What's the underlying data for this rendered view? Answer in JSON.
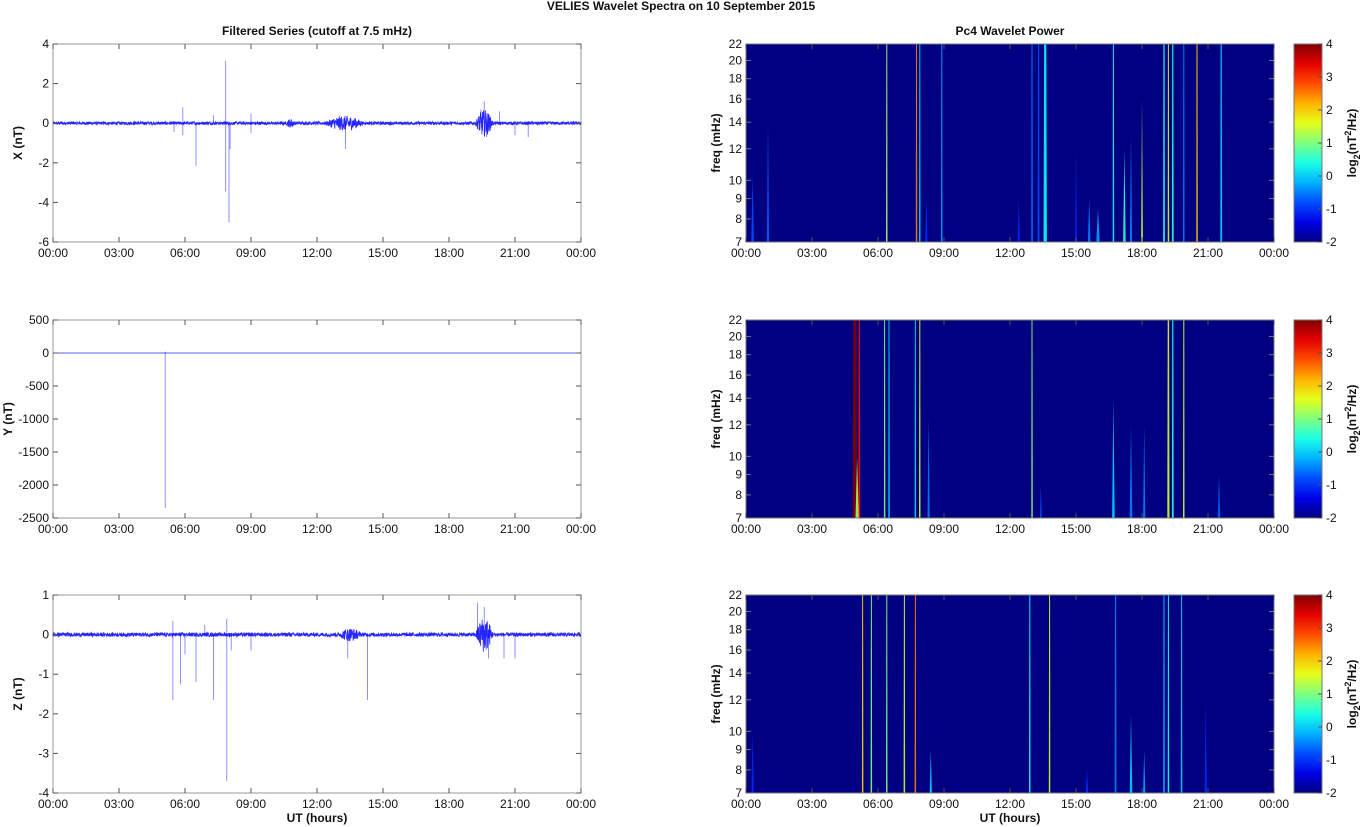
{
  "figure": {
    "title": "VELIES Wavelet Spectra on 10 September 2015",
    "left_title": "Filtered Series (cutoff at 7.5 mHz)",
    "right_title": "Pc4 Wavelet Power",
    "xlabel": "UT (hours)"
  },
  "chart_data": [
    {
      "type": "line",
      "component": "X",
      "ylabel": "X (nT)",
      "ylim": [
        -6,
        4
      ],
      "yticks": [
        4,
        2,
        0,
        -2,
        -4,
        -6
      ],
      "xlim_hours": [
        0,
        24
      ],
      "xticks": [
        "00:00",
        "03:00",
        "06:00",
        "09:00",
        "12:00",
        "15:00",
        "18:00",
        "21:00",
        "00:00"
      ],
      "color": "#0000ff",
      "noise_amplitude": 0.08,
      "bursts": [
        [
          12.4,
          14.1,
          0.3
        ],
        [
          19.2,
          20.0,
          0.6
        ],
        [
          10.6,
          11.0,
          0.15
        ]
      ],
      "spikes": [
        [
          5.9,
          0.8
        ],
        [
          5.9,
          -0.6
        ],
        [
          6.5,
          -2.15
        ],
        [
          7.85,
          3.15
        ],
        [
          7.85,
          -3.45
        ],
        [
          8.0,
          -5.0
        ],
        [
          8.05,
          -1.3
        ],
        [
          9.0,
          0.5
        ],
        [
          9.0,
          -0.5
        ],
        [
          13.3,
          -1.3
        ],
        [
          19.6,
          1.1
        ],
        [
          19.45,
          0.7
        ],
        [
          19.7,
          -0.7
        ],
        [
          20.3,
          0.6
        ],
        [
          21.0,
          -0.6
        ],
        [
          21.6,
          -0.7
        ],
        [
          5.5,
          -0.45
        ],
        [
          7.3,
          0.4
        ]
      ]
    },
    {
      "type": "line",
      "component": "Y",
      "ylabel": "Y (nT)",
      "ylim": [
        -2500,
        500
      ],
      "yticks": [
        500,
        0,
        -500,
        -1000,
        -1500,
        -2000,
        -2500
      ],
      "xlim_hours": [
        0,
        24
      ],
      "xticks": [
        "00:00",
        "03:00",
        "06:00",
        "09:00",
        "12:00",
        "15:00",
        "18:00",
        "21:00",
        "00:00"
      ],
      "color": "#0000ff",
      "noise_amplitude": 0,
      "bursts": [],
      "spikes": [
        [
          5.1,
          -2350
        ],
        [
          5.1,
          20
        ]
      ]
    },
    {
      "type": "line",
      "component": "Z",
      "ylabel": "Z (nT)",
      "ylim": [
        -4,
        1
      ],
      "yticks": [
        1,
        0,
        -1,
        -2,
        -3,
        -4
      ],
      "xlim_hours": [
        0,
        24
      ],
      "xticks": [
        "00:00",
        "03:00",
        "06:00",
        "09:00",
        "12:00",
        "15:00",
        "18:00",
        "21:00",
        "00:00"
      ],
      "color": "#0000ff",
      "noise_amplitude": 0.05,
      "bursts": [
        [
          19.2,
          20.0,
          0.4
        ],
        [
          13.0,
          14.0,
          0.12
        ]
      ],
      "spikes": [
        [
          5.45,
          -1.65
        ],
        [
          5.45,
          0.35
        ],
        [
          5.8,
          -1.25
        ],
        [
          6.5,
          -1.2
        ],
        [
          7.3,
          -1.65
        ],
        [
          7.9,
          -3.7
        ],
        [
          7.9,
          0.4
        ],
        [
          8.1,
          -0.4
        ],
        [
          9.0,
          -0.4
        ],
        [
          13.4,
          -0.6
        ],
        [
          14.3,
          -1.65
        ],
        [
          19.3,
          0.8
        ],
        [
          19.6,
          0.7
        ],
        [
          19.8,
          -0.6
        ],
        [
          20.5,
          -0.6
        ],
        [
          21.0,
          -0.6
        ],
        [
          6.0,
          -0.5
        ],
        [
          6.9,
          0.25
        ]
      ]
    },
    {
      "type": "heatmap",
      "component": "X",
      "ylabel": "freq (mHz)",
      "ylim": [
        7,
        22
      ],
      "yticks": [
        7,
        8,
        9,
        10,
        12,
        14,
        16,
        18,
        20,
        22
      ],
      "yscale": "log",
      "xlim_hours": [
        0,
        24
      ],
      "xticks": [
        "00:00",
        "03:00",
        "06:00",
        "09:00",
        "12:00",
        "15:00",
        "18:00",
        "21:00",
        "00:00"
      ],
      "colorbar": {
        "range": [
          -2,
          4
        ],
        "ticks": [
          4,
          3,
          2,
          1,
          0,
          -1,
          -2
        ],
        "label_base": "log",
        "label_sub": "2",
        "label_mid": "(nT",
        "label_sup": "2",
        "label_end": "/Hz)"
      },
      "background_power": -2,
      "streaks": [
        [
          0.3,
          10.3,
          -0.8,
          0.12
        ],
        [
          1.0,
          14,
          -0.7,
          0.1
        ],
        [
          6.4,
          22,
          1.2,
          0.05
        ],
        [
          7.75,
          22,
          2.5,
          0.05
        ],
        [
          7.9,
          22,
          0,
          0.05
        ],
        [
          8.2,
          9,
          -1,
          0.1
        ],
        [
          8.9,
          22,
          -0.3,
          0.06
        ],
        [
          12.4,
          9,
          -1,
          0.1
        ],
        [
          13.0,
          22,
          -0.5,
          0.06
        ],
        [
          13.3,
          22,
          -0.8,
          0.08
        ],
        [
          13.6,
          22,
          0.3,
          0.15
        ],
        [
          15.0,
          12,
          -1,
          0.08
        ],
        [
          15.6,
          9,
          -0.5,
          0.12
        ],
        [
          16.0,
          8.5,
          -0.3,
          0.15
        ],
        [
          16.7,
          22,
          0.3,
          0.06
        ],
        [
          17.2,
          12,
          0.5,
          0.12
        ],
        [
          17.5,
          13,
          -0.5,
          0.1
        ],
        [
          18.0,
          16,
          1.5,
          0.08
        ],
        [
          19.0,
          22,
          0.5,
          0.08
        ],
        [
          19.2,
          22,
          1.5,
          0.06
        ],
        [
          19.4,
          22,
          0.5,
          0.08
        ],
        [
          19.9,
          22,
          -0.5,
          0.06
        ],
        [
          20.5,
          22,
          2,
          0.04
        ],
        [
          21.6,
          22,
          0,
          0.08
        ]
      ]
    },
    {
      "type": "heatmap",
      "component": "Y",
      "ylabel": "freq (mHz)",
      "ylim": [
        7,
        22
      ],
      "yticks": [
        7,
        8,
        9,
        10,
        12,
        14,
        16,
        18,
        20,
        22
      ],
      "yscale": "log",
      "xlim_hours": [
        0,
        24
      ],
      "xticks": [
        "00:00",
        "03:00",
        "06:00",
        "09:00",
        "12:00",
        "15:00",
        "18:00",
        "21:00",
        "00:00"
      ],
      "colorbar": {
        "range": [
          -2,
          4
        ],
        "ticks": [
          4,
          3,
          2,
          1,
          0,
          -1,
          -2
        ],
        "label_base": "log",
        "label_sub": "2",
        "label_mid": "(nT",
        "label_sup": "2",
        "label_end": "/Hz)"
      },
      "background_power": -2,
      "streaks": [
        [
          4.95,
          22,
          4,
          0.2
        ],
        [
          5.15,
          22,
          3.2,
          0.08
        ],
        [
          5.05,
          10,
          1.2,
          0.15
        ],
        [
          6.3,
          22,
          1,
          0.05
        ],
        [
          6.5,
          22,
          0,
          0.05
        ],
        [
          7.7,
          22,
          0,
          0.05
        ],
        [
          7.9,
          22,
          1.5,
          0.05
        ],
        [
          8.3,
          12.5,
          -0.5,
          0.1
        ],
        [
          13.0,
          22,
          1,
          0.05
        ],
        [
          13.4,
          8.5,
          -0.8,
          0.08
        ],
        [
          16.7,
          14,
          0,
          0.12
        ],
        [
          17.5,
          12,
          -0.5,
          0.12
        ],
        [
          18.1,
          12,
          -0.5,
          0.1
        ],
        [
          19.2,
          22,
          1.5,
          0.1
        ],
        [
          19.4,
          22,
          0.5,
          0.08
        ],
        [
          19.9,
          22,
          1.5,
          0.05
        ],
        [
          21.5,
          9,
          -0.7,
          0.12
        ]
      ]
    },
    {
      "type": "heatmap",
      "component": "Z",
      "ylabel": "freq (mHz)",
      "ylim": [
        7,
        22
      ],
      "yticks": [
        7,
        8,
        9,
        10,
        12,
        14,
        16,
        18,
        20,
        22
      ],
      "yscale": "log",
      "xlim_hours": [
        0,
        24
      ],
      "xticks": [
        "00:00",
        "03:00",
        "06:00",
        "09:00",
        "12:00",
        "15:00",
        "18:00",
        "21:00",
        "00:00"
      ],
      "colorbar": {
        "range": [
          -2,
          4
        ],
        "ticks": [
          4,
          3,
          2,
          1,
          0,
          -1,
          -2
        ],
        "label_base": "log",
        "label_sub": "2",
        "label_mid": "(nT",
        "label_sup": "2",
        "label_end": "/Hz)"
      },
      "background_power": -2,
      "streaks": [
        [
          0.3,
          10,
          -1,
          0.1
        ],
        [
          5.3,
          22,
          2,
          0.05
        ],
        [
          5.7,
          22,
          1,
          0.05
        ],
        [
          6.4,
          22,
          1,
          0.05
        ],
        [
          7.2,
          22,
          1.5,
          0.05
        ],
        [
          7.7,
          22,
          2.5,
          0.05
        ],
        [
          8.4,
          9,
          0,
          0.1
        ],
        [
          12.9,
          22,
          0.3,
          0.06
        ],
        [
          13.8,
          22,
          1.5,
          0.05
        ],
        [
          15.5,
          8,
          -1,
          0.12
        ],
        [
          16.8,
          22,
          -0.5,
          0.08
        ],
        [
          17.5,
          11,
          0,
          0.12
        ],
        [
          18.1,
          9,
          -0.3,
          0.1
        ],
        [
          19.0,
          22,
          -0.3,
          0.08
        ],
        [
          19.2,
          22,
          0.5,
          0.06
        ],
        [
          19.8,
          22,
          0,
          0.06
        ],
        [
          20.9,
          12,
          -1,
          0.1
        ]
      ]
    }
  ]
}
